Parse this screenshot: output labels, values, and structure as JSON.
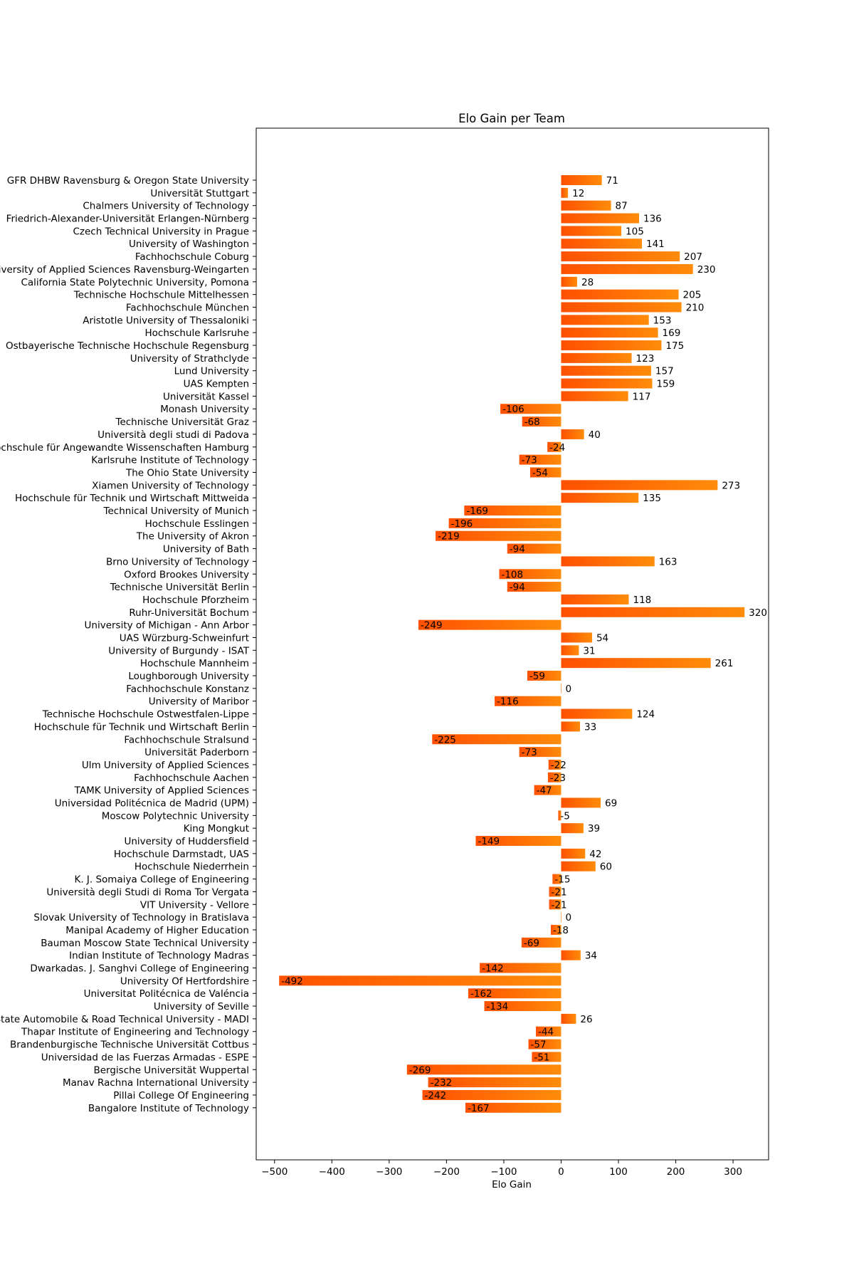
{
  "chart_data": {
    "type": "bar",
    "orientation": "horizontal",
    "title": "Elo Gain per Team",
    "xlabel": "Elo Gain",
    "ylabel": "",
    "xlim": [
      -532,
      362
    ],
    "xticks": [
      -500,
      -400,
      -300,
      -200,
      -100,
      0,
      100,
      200,
      300
    ],
    "xtick_labels": [
      "−500",
      "−400",
      "−300",
      "−200",
      "−100",
      "0",
      "100",
      "200",
      "300"
    ],
    "grid": false,
    "bar_gradient": [
      "#ff5000",
      "#ff8c0a"
    ],
    "categories": [
      "GFR DHBW Ravensburg & Oregon State University",
      "Universität Stuttgart",
      "Chalmers University of Technology",
      "Friedrich-Alexander-Universität Erlangen-Nürnberg",
      "Czech Technical University in Prague",
      "University of Washington",
      "Fachhochschule Coburg",
      "University of Applied Sciences Ravensburg-Weingarten",
      "California State Polytechnic University, Pomona",
      "Technische Hochschule Mittelhessen",
      "Fachhochschule München",
      "Aristotle University of Thessaloniki",
      "Hochschule Karlsruhe",
      "Ostbayerische Technische Hochschule Regensburg",
      "University of Strathclyde",
      "Lund University",
      "UAS Kempten",
      "Universität Kassel",
      "Monash University",
      "Technische Universität Graz",
      "Università degli studi di Padova",
      "Hochschule für Angewandte Wissenschaften Hamburg",
      "Karlsruhe Institute of Technology",
      "The Ohio State University",
      "Xiamen University of Technology",
      "Hochschule für Technik und Wirtschaft Mittweida",
      "Technical University of Munich",
      "Hochschule Esslingen",
      "The University of Akron",
      "University of Bath",
      "Brno University of Technology",
      "Oxford Brookes University",
      "Technische Universität Berlin",
      "Hochschule Pforzheim",
      "Ruhr-Universität Bochum",
      "University of Michigan - Ann Arbor",
      "UAS Würzburg-Schweinfurt",
      "University of Burgundy - ISAT",
      "Hochschule Mannheim",
      "Loughborough University",
      "Fachhochschule Konstanz",
      "University of Maribor",
      "Technische Hochschule Ostwestfalen-Lippe",
      "Hochschule für Technik und Wirtschaft Berlin",
      "Fachhochschule Stralsund",
      "Universität Paderborn",
      "Ulm University of Applied Sciences",
      "Fachhochschule Aachen",
      "TAMK University of Applied Sciences",
      "Universidad Politécnica de Madrid (UPM)",
      "Moscow Polytechnic University",
      "King Mongkut",
      "University of Huddersfield",
      "Hochschule Darmstadt, UAS",
      "Hochschule Niederrhein",
      "K. J. Somaiya College of Engineering",
      "Università degli Studi di Roma Tor Vergata",
      "VIT University - Vellore",
      "Slovak University of Technology in Bratislava",
      "Manipal Academy of Higher Education",
      "Bauman Moscow State Technical University",
      "Indian Institute of Technology Madras",
      "Dwarkadas. J. Sanghvi College of Engineering",
      "University Of Hertfordshire",
      "Universitat Politécnica de Valéncia",
      "University of Seville",
      "Moscow State Automobile & Road Technical University - MADI",
      "Thapar Institute of Engineering and Technology",
      "Brandenburgische Technische Universität Cottbus",
      "Universidad de las Fuerzas Armadas - ESPE",
      "Bergische Universität Wuppertal",
      "Manav Rachna International University",
      "Pillai College Of Engineering",
      "Bangalore Institute of Technology"
    ],
    "values": [
      71,
      12,
      87,
      136,
      105,
      141,
      207,
      230,
      28,
      205,
      210,
      153,
      169,
      175,
      123,
      157,
      159,
      117,
      -106,
      -68,
      40,
      -24,
      -73,
      -54,
      273,
      135,
      -169,
      -196,
      -219,
      -94,
      163,
      -108,
      -94,
      118,
      320,
      -249,
      54,
      31,
      261,
      -59,
      0,
      -116,
      124,
      33,
      -225,
      -73,
      -22,
      -23,
      -47,
      69,
      -5,
      39,
      -149,
      42,
      60,
      -15,
      -21,
      -21,
      0,
      -18,
      -69,
      34,
      -142,
      -492,
      -162,
      -134,
      26,
      -44,
      -57,
      -51,
      -269,
      -232,
      -242,
      -167
    ],
    "data_labels": [
      "71",
      "12",
      "87",
      "136",
      "105",
      "141",
      "207",
      "230",
      "28",
      "205",
      "210",
      "153",
      "169",
      "175",
      "123",
      "157",
      "159",
      "117",
      "-106",
      "-68",
      "40",
      "-24",
      "-73",
      "-54",
      "273",
      "135",
      "-169",
      "-196",
      "-219",
      "-94",
      "163",
      "-108",
      "-94",
      "118",
      "320",
      "-249",
      "54",
      "31",
      "261",
      "-59",
      "0",
      "-116",
      "124",
      "33",
      "-225",
      "-73",
      "-22",
      "-23",
      "-47",
      "69",
      "-5",
      "39",
      "-149",
      "42",
      "60",
      "-15",
      "-21",
      "-21",
      "0",
      "-18",
      "-69",
      "34",
      "-142",
      "-492",
      "-162",
      "-134",
      "26",
      "-44",
      "-57",
      "-51",
      "-269",
      "-232",
      "-242",
      "-167"
    ]
  }
}
